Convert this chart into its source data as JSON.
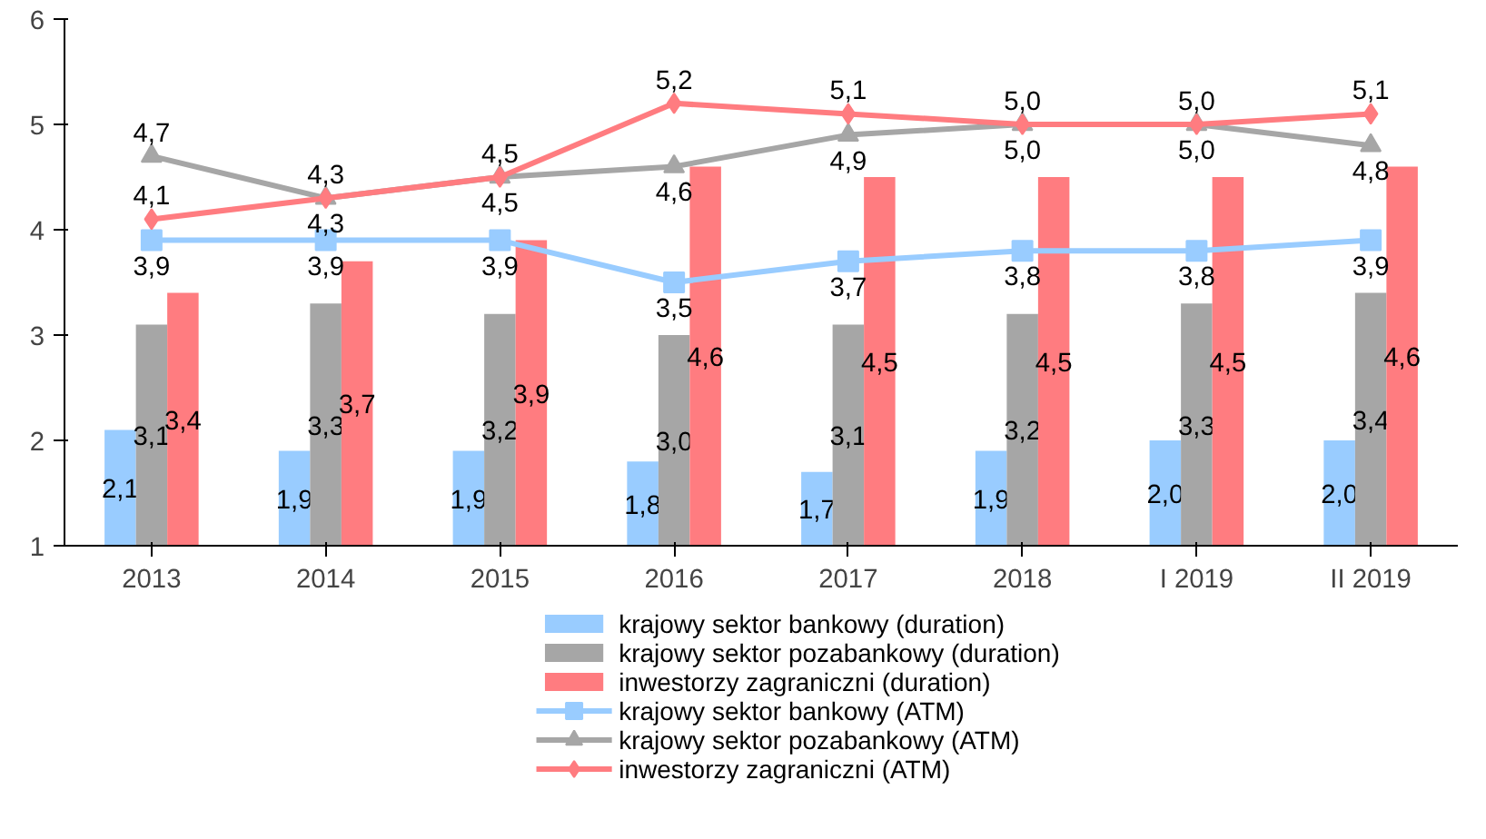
{
  "chart_data": {
    "type": "bar",
    "categories": [
      "2013",
      "2014",
      "2015",
      "2016",
      "2017",
      "2018",
      "I 2019",
      "II 2019"
    ],
    "ylim": [
      1,
      6
    ],
    "yticks": [
      1,
      2,
      3,
      4,
      5,
      6
    ],
    "legend": "bottom",
    "series": [
      {
        "name": "krajowy sektor bankowy (duration)",
        "color": "#99ccff",
        "values": [
          2.1,
          1.9,
          1.9,
          1.8,
          1.7,
          1.9,
          2.0,
          2.0
        ],
        "value_labels": [
          "2,1",
          "1,9",
          "1,9",
          "1,8",
          "1,7",
          "1,9",
          "2,0",
          "2,0"
        ]
      },
      {
        "name": "krajowy sektor pozabankowy (duration)",
        "color": "#a6a6a6",
        "values": [
          3.1,
          3.3,
          3.2,
          3.0,
          3.1,
          3.2,
          3.3,
          3.4
        ],
        "value_labels": [
          "3,1",
          "3,3",
          "3,2",
          "3,0",
          "3,1",
          "3,2",
          "3,3",
          "3,4"
        ]
      },
      {
        "name": "inwestorzy zagraniczni (duration)",
        "color": "#ff7c80",
        "values": [
          3.4,
          3.7,
          3.9,
          4.6,
          4.5,
          4.5,
          4.5,
          4.6
        ],
        "value_labels": [
          "3,4",
          "3,7",
          "3,9",
          "4,6",
          "4,5",
          "4,5",
          "4,5",
          "4,6"
        ]
      },
      {
        "name": "krajowy sektor bankowy (ATM)",
        "type": "line",
        "marker": "square",
        "color": "#99ccff",
        "values": [
          3.9,
          3.9,
          3.9,
          3.5,
          3.7,
          3.8,
          3.8,
          3.9
        ],
        "value_labels": [
          "3,9",
          "3,9",
          "3,9",
          "3,5",
          "3,7",
          "3,8",
          "3,8",
          "3,9"
        ]
      },
      {
        "name": "krajowy sektor pozabankowy (ATM)",
        "type": "line",
        "marker": "triangle",
        "color": "#a6a6a6",
        "values": [
          4.7,
          4.3,
          4.5,
          4.6,
          4.9,
          5.0,
          5.0,
          4.8
        ],
        "value_labels": [
          "4,7",
          "4,3",
          "4,5",
          "4,6",
          "4,9",
          "5,0",
          "5,0",
          "4,8"
        ]
      },
      {
        "name": "inwestorzy zagraniczni (ATM)",
        "type": "line",
        "marker": "diamond",
        "color": "#ff7c80",
        "values": [
          4.1,
          4.3,
          4.5,
          5.2,
          5.1,
          5.0,
          5.0,
          5.1
        ],
        "value_labels": [
          "4,1",
          "4,3",
          "4,5",
          "5,2",
          "5,1",
          "5,0",
          "5,0",
          "5,1"
        ]
      }
    ]
  }
}
